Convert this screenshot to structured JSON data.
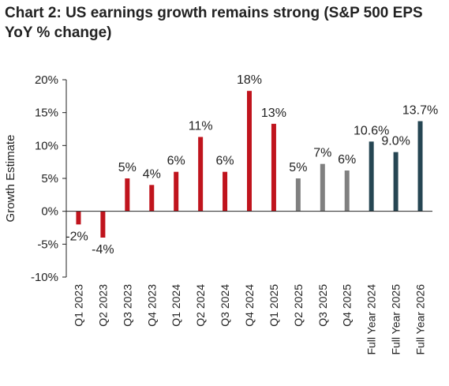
{
  "chart_data": {
    "type": "bar",
    "title": "Chart 2: US earnings growth remains strong (S&P 500 EPS YoY % change)",
    "xlabel": "",
    "ylabel": "Growth Estimate",
    "ylim": [
      -10,
      20
    ],
    "ytick_labels": [
      "20%",
      "15%",
      "10%",
      "5%",
      "0%",
      "-5%",
      "-10%"
    ],
    "yticks": [
      20,
      15,
      10,
      5,
      0,
      -5,
      -10
    ],
    "grid": false,
    "legend": "none",
    "categories": [
      "Q1 2023",
      "Q2 2023",
      "Q3 2023",
      "Q4 2023",
      "Q1 2024",
      "Q2 2024",
      "Q3 2024",
      "Q4 2024",
      "Q1 2025",
      "Q2 2025",
      "Q3 2025",
      "Q4 2025",
      "Full Year 2024",
      "Full Year 2025",
      "Full Year 2026"
    ],
    "values": [
      -2,
      -4,
      5,
      4,
      6,
      11.3,
      6,
      18.3,
      13.3,
      5,
      7.2,
      6.2,
      10.6,
      9.0,
      13.7
    ],
    "data_labels": [
      "-2%",
      "-4%",
      "5%",
      "4%",
      "6%",
      "11%",
      "6%",
      "18%",
      "13%",
      "5%",
      "7%",
      "6%",
      "10.6%",
      "9.0%",
      "13.7%"
    ],
    "bar_colors": [
      "#c0141d",
      "#c0141d",
      "#c0141d",
      "#c0141d",
      "#c0141d",
      "#c0141d",
      "#c0141d",
      "#c0141d",
      "#c0141d",
      "#808080",
      "#808080",
      "#808080",
      "#264653",
      "#264653",
      "#264653"
    ],
    "colors": {
      "actual": "#c0141d",
      "estimate": "#808080",
      "full_year": "#264653",
      "axis": "#222222"
    }
  }
}
